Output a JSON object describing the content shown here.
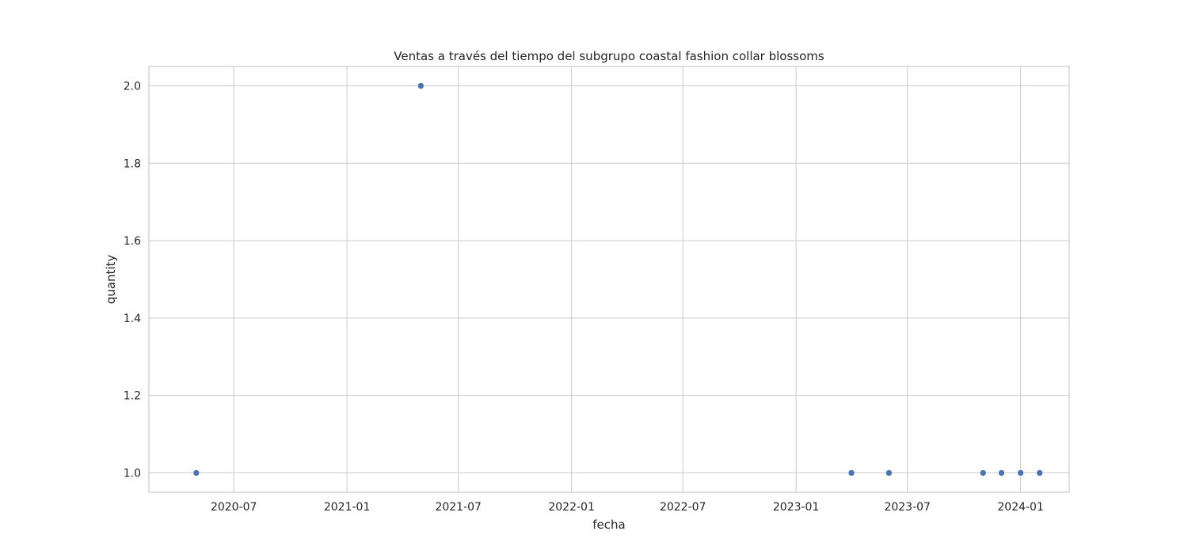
{
  "chart_data": {
    "type": "scatter",
    "title": "Ventas a través del tiempo del subgrupo coastal fashion collar blossoms",
    "xlabel": "fecha",
    "ylabel": "quantity",
    "x_axis_type": "date",
    "xlim": [
      "2020-02-14",
      "2024-03-20"
    ],
    "ylim": [
      0.95,
      2.05
    ],
    "x_ticks": [
      {
        "date": "2020-07-01",
        "label": "2020-07"
      },
      {
        "date": "2021-01-01",
        "label": "2021-01"
      },
      {
        "date": "2021-07-01",
        "label": "2021-07"
      },
      {
        "date": "2022-01-01",
        "label": "2022-01"
      },
      {
        "date": "2022-07-01",
        "label": "2022-07"
      },
      {
        "date": "2023-01-01",
        "label": "2023-01"
      },
      {
        "date": "2023-07-01",
        "label": "2023-07"
      },
      {
        "date": "2024-01-01",
        "label": "2024-01"
      }
    ],
    "y_ticks": [
      {
        "value": 1.0,
        "label": "1.0"
      },
      {
        "value": 1.2,
        "label": "1.2"
      },
      {
        "value": 1.4,
        "label": "1.4"
      },
      {
        "value": 1.6,
        "label": "1.6"
      },
      {
        "value": 1.8,
        "label": "1.8"
      },
      {
        "value": 2.0,
        "label": "2.0"
      }
    ],
    "grid": true,
    "series": [
      {
        "color": "#4c72b0",
        "points": [
          {
            "x": "2020-05-01",
            "y": 1
          },
          {
            "x": "2021-05-01",
            "y": 2
          },
          {
            "x": "2023-04-01",
            "y": 1
          },
          {
            "x": "2023-06-01",
            "y": 1
          },
          {
            "x": "2023-11-01",
            "y": 1
          },
          {
            "x": "2023-12-01",
            "y": 1
          },
          {
            "x": "2024-01-01",
            "y": 1
          },
          {
            "x": "2024-02-01",
            "y": 1
          }
        ]
      }
    ]
  }
}
